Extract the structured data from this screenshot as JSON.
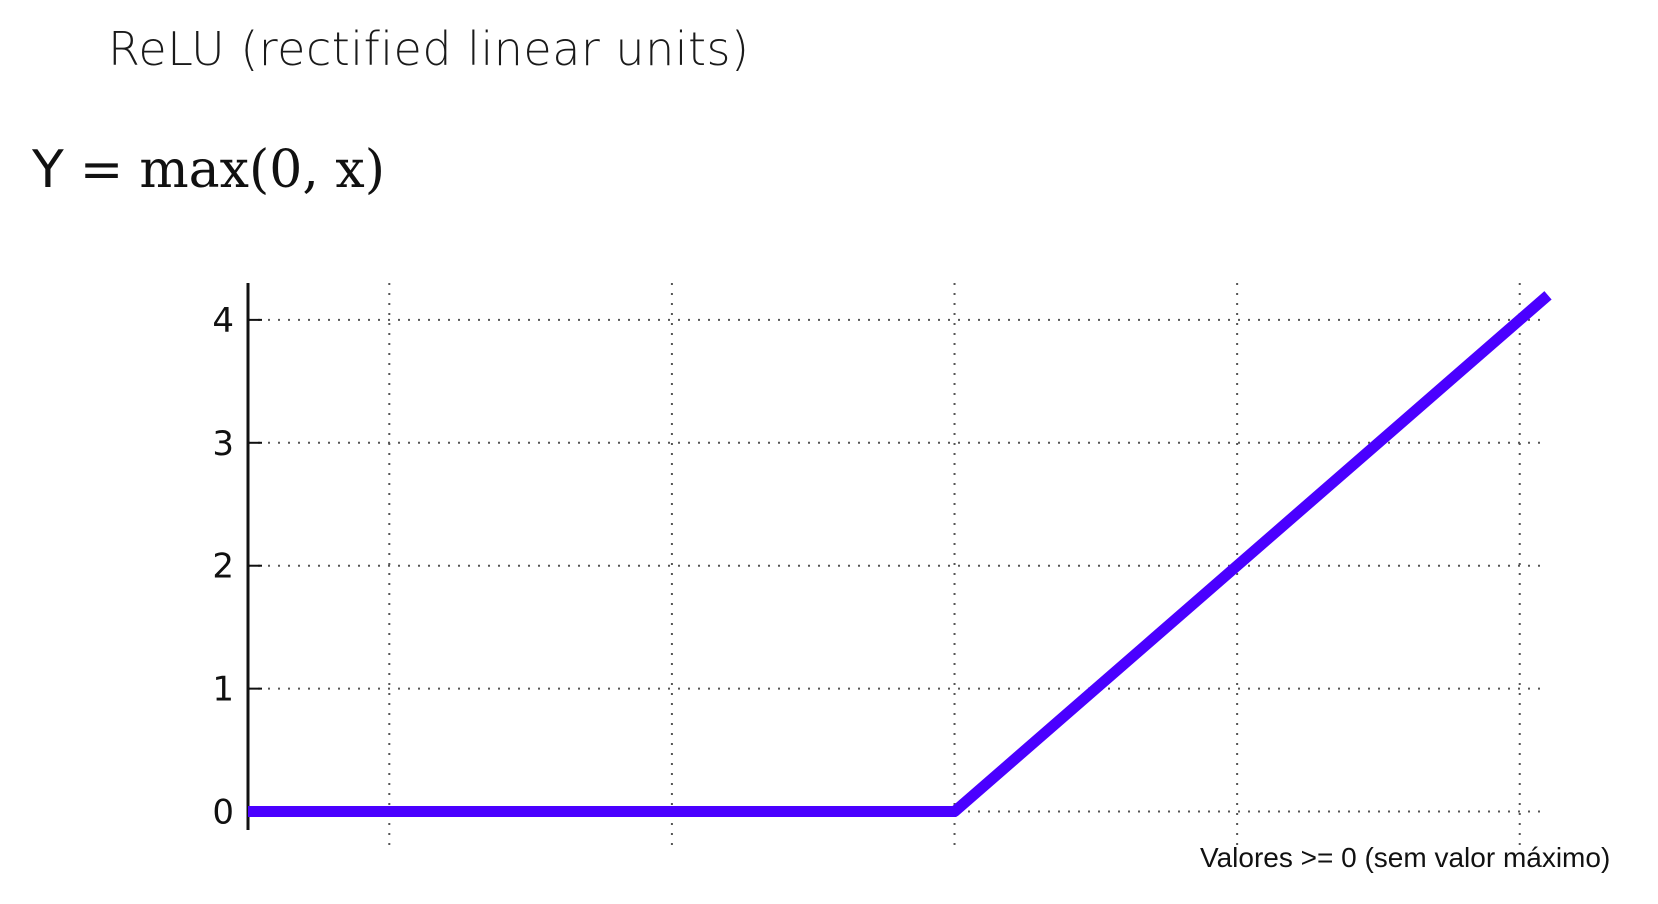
{
  "slide": {
    "title": "ReLU (rectified linear units)",
    "formula": {
      "lhs": "Y",
      "eq": "=",
      "rhs": "max(0, x)"
    }
  },
  "chart_data": {
    "type": "line",
    "xlim": [
      -5,
      4.2
    ],
    "ylim": [
      -0.15,
      4.3
    ],
    "x_gridlines": [
      -4,
      -2,
      0,
      2,
      4
    ],
    "y_ticks": [
      0,
      1,
      2,
      3,
      4
    ],
    "tick_labels": [
      "0",
      "1",
      "2",
      "3",
      "4"
    ],
    "grid": true,
    "grid_style": "dotted",
    "series": [
      {
        "color": "#4a00ff",
        "x": [
          -5,
          0,
          4.2
        ],
        "y": [
          0,
          0,
          4.2
        ]
      }
    ],
    "annotation": "Valores >= 0 (sem valor máximo)"
  }
}
